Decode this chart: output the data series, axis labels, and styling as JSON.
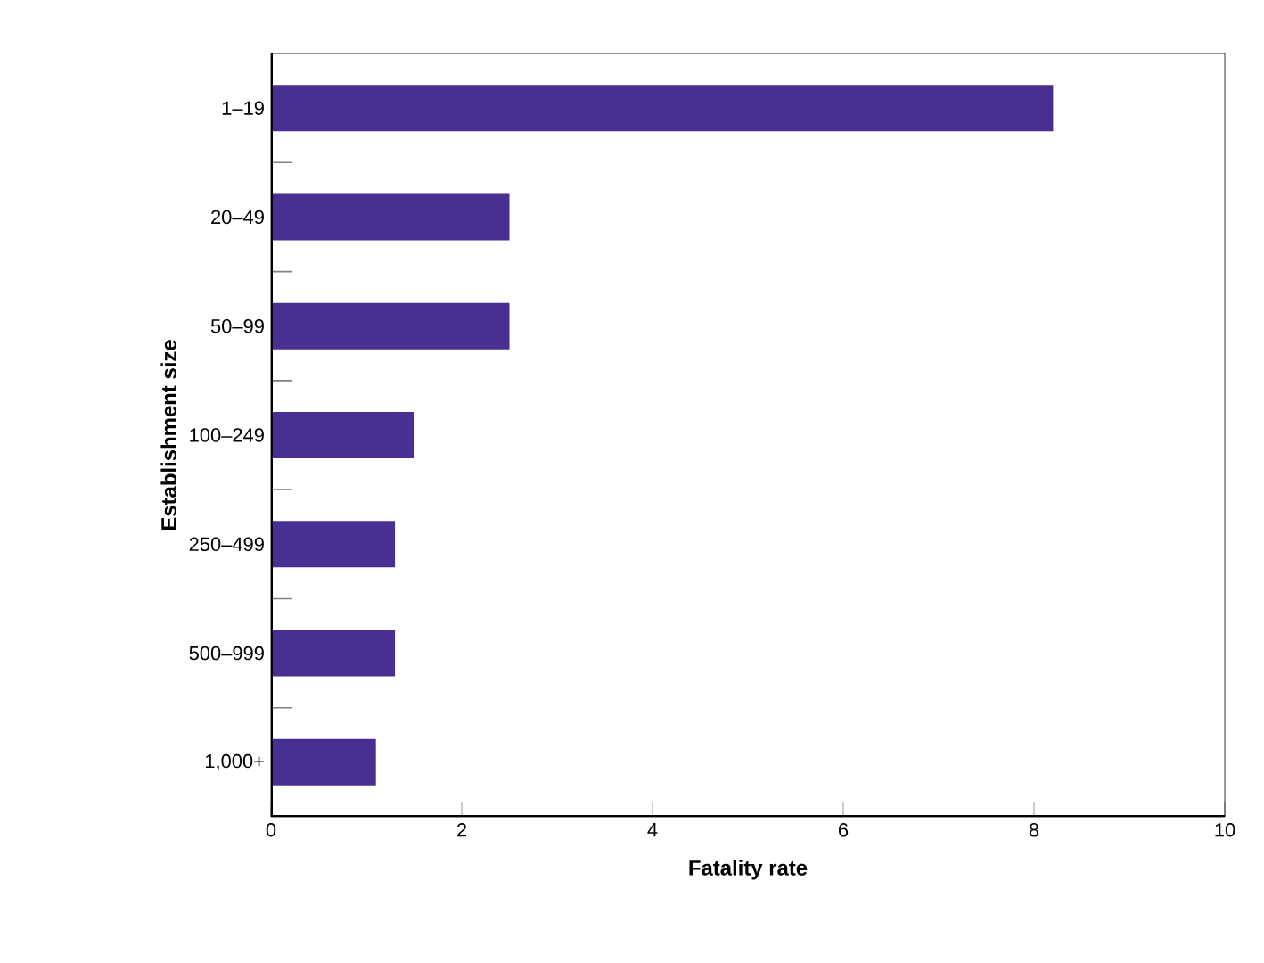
{
  "chart_data": {
    "type": "bar",
    "orientation": "horizontal",
    "xlabel": "Fatality rate",
    "ylabel": "Establishment size",
    "categories": [
      "1–19",
      "20–49",
      "50–99",
      "100–249",
      "250–499",
      "500–999",
      "1,000+"
    ],
    "values": [
      8.2,
      2.5,
      2.5,
      1.5,
      1.3,
      1.3,
      1.1
    ],
    "color": "#482f91",
    "xlim": [
      0,
      10
    ],
    "xticks": [
      0,
      2,
      4,
      6,
      8,
      10
    ]
  }
}
